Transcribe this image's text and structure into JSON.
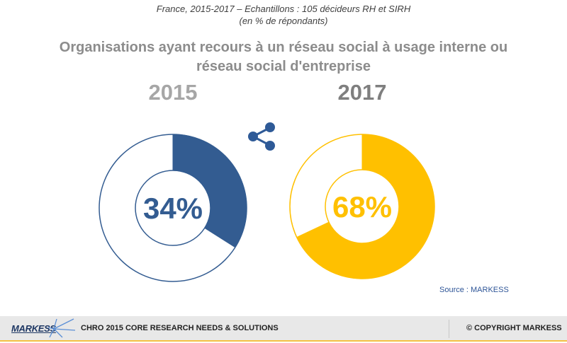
{
  "header": {
    "subtitle_line1": "France, 2015-2017 – Echantillons : 105 décideurs RH et SIRH",
    "subtitle_line2": "(en % de répondants)",
    "title_line1": "Organisations ayant recours à un réseau social à usage interne ou",
    "title_line2": "réseau social d'entreprise"
  },
  "share_icon": "share-icon",
  "chart_data": {
    "type": "pie",
    "subtype": "donut",
    "title": "Organisations ayant recours à un réseau social à usage interne ou réseau social d'entreprise",
    "unit": "%",
    "series": [
      {
        "name": "2015",
        "value": 34,
        "label": "34%",
        "color": "#335c91",
        "year_color": "#a6a6a6"
      },
      {
        "name": "2017",
        "value": 68,
        "label": "68%",
        "color": "#ffc000",
        "year_color": "#7f7f7f"
      }
    ]
  },
  "source": "Source : MARKESS",
  "footer": {
    "brand": "MARKESS",
    "text": "CHRO 2015 CORE RESEARCH NEEDS & SOLUTIONS",
    "copyright": "© COPYRIGHT MARKESS"
  }
}
